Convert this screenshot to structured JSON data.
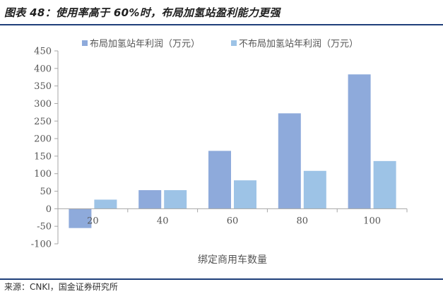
{
  "header": {
    "title": "图表 48：使用率高于 60%时，布局加氢站盈利能力更强"
  },
  "footer": {
    "source": "来源：CNKI，国金证券研究所"
  },
  "chart_data": {
    "type": "bar",
    "categories": [
      "20",
      "40",
      "60",
      "80",
      "100"
    ],
    "series": [
      {
        "name": "布局加氢站年利润（万元）",
        "values": [
          -55,
          53,
          165,
          272,
          383
        ],
        "color": "#8eaadb"
      },
      {
        "name": "不布局加氢站年利润（万元）",
        "values": [
          26,
          53,
          81,
          108,
          136
        ],
        "color": "#9dc3e6"
      }
    ],
    "xlabel": "绑定商用车数量",
    "ylabel": "",
    "ylim": [
      -100,
      450
    ],
    "yticks": [
      -100,
      -50,
      0,
      50,
      100,
      150,
      200,
      250,
      300,
      350,
      400,
      450
    ],
    "legend_position": "top",
    "grid": false
  }
}
